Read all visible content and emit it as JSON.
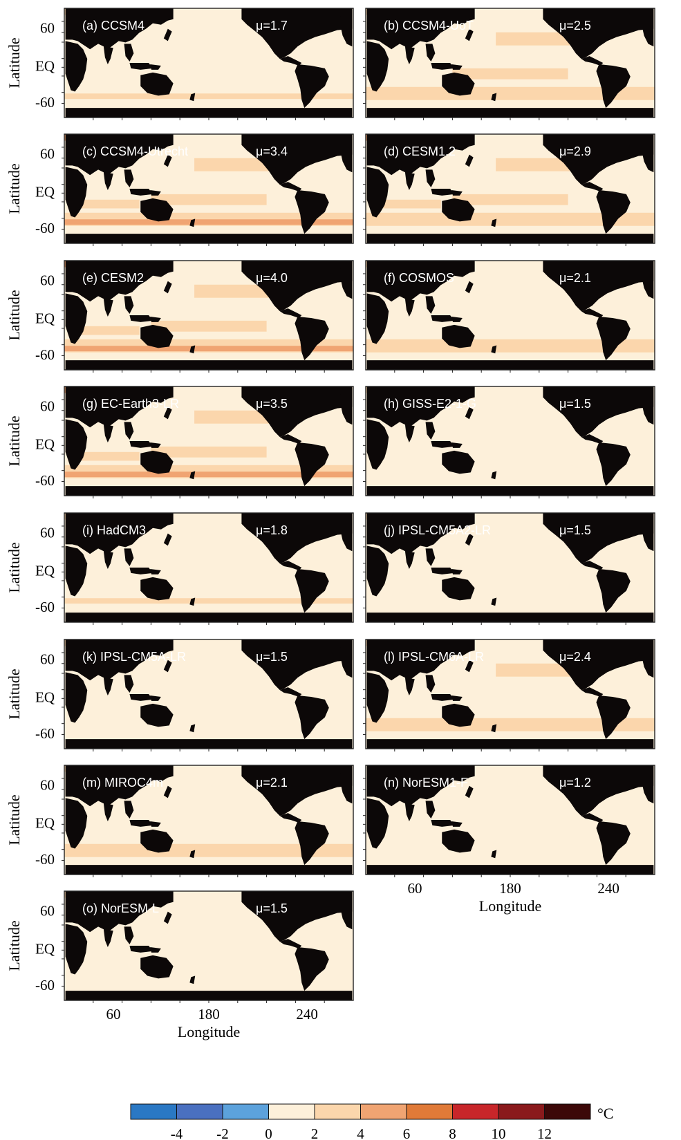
{
  "figure": {
    "ylabel": "Latitude",
    "xlabel": "Longitude",
    "unit": "°C"
  },
  "chart_data": [
    {
      "type": "heatmap",
      "panel_label": "(a) CCSM4",
      "mean_label": "μ=1.7",
      "mean": 1.7,
      "yticks": [
        "60",
        "EQ",
        "-60"
      ],
      "xticks": [],
      "xlabel": ""
    },
    {
      "type": "heatmap",
      "panel_label": "(b) CCSM4-UoT",
      "mean_label": "μ=2.5",
      "mean": 2.5,
      "yticks": [],
      "xticks": [],
      "xlabel": ""
    },
    {
      "type": "heatmap",
      "panel_label": "(c) CCSM4-Utrecht",
      "mean_label": "μ=3.4",
      "mean": 3.4,
      "yticks": [
        "60",
        "EQ",
        "-60"
      ],
      "xticks": [],
      "xlabel": ""
    },
    {
      "type": "heatmap",
      "panel_label": "(d) CESM1.2",
      "mean_label": "μ=2.9",
      "mean": 2.9,
      "yticks": [],
      "xticks": [],
      "xlabel": ""
    },
    {
      "type": "heatmap",
      "panel_label": "(e) CESM2",
      "mean_label": "μ=4.0",
      "mean": 4.0,
      "yticks": [
        "60",
        "EQ",
        "-60"
      ],
      "xticks": [],
      "xlabel": ""
    },
    {
      "type": "heatmap",
      "panel_label": "(f) COSMOS",
      "mean_label": "μ=2.1",
      "mean": 2.1,
      "yticks": [],
      "xticks": [],
      "xlabel": ""
    },
    {
      "type": "heatmap",
      "panel_label": "(g) EC-Earth3-LR",
      "mean_label": "μ=3.5",
      "mean": 3.5,
      "yticks": [
        "60",
        "EQ",
        "-60"
      ],
      "xticks": [],
      "xlabel": ""
    },
    {
      "type": "heatmap",
      "panel_label": "(h) GISS-E2-1-G",
      "mean_label": "μ=1.5",
      "mean": 1.5,
      "yticks": [],
      "xticks": [],
      "xlabel": ""
    },
    {
      "type": "heatmap",
      "panel_label": "(i) HadCM3",
      "mean_label": "μ=1.8",
      "mean": 1.8,
      "yticks": [
        "60",
        "EQ",
        "-60"
      ],
      "xticks": [],
      "xlabel": ""
    },
    {
      "type": "heatmap",
      "panel_label": "(j) IPSL-CM5A2-LR",
      "mean_label": "μ=1.5",
      "mean": 1.5,
      "yticks": [],
      "xticks": [],
      "xlabel": ""
    },
    {
      "type": "heatmap",
      "panel_label": "(k) IPSL-CM5A-LR",
      "mean_label": "μ=1.5",
      "mean": 1.5,
      "yticks": [
        "60",
        "EQ",
        "-60"
      ],
      "xticks": [],
      "xlabel": ""
    },
    {
      "type": "heatmap",
      "panel_label": "(l) IPSL-CM6A-LR",
      "mean_label": "μ=2.4",
      "mean": 2.4,
      "yticks": [],
      "xticks": [],
      "xlabel": ""
    },
    {
      "type": "heatmap",
      "panel_label": "(m) MIROC4m",
      "mean_label": "μ=2.1",
      "mean": 2.1,
      "yticks": [
        "60",
        "EQ",
        "-60"
      ],
      "xticks": [],
      "xlabel": ""
    },
    {
      "type": "heatmap",
      "panel_label": "(n) NorESM1-F",
      "mean_label": "μ=1.2",
      "mean": 1.2,
      "yticks": [],
      "xticks": [
        "60",
        "180",
        "240"
      ],
      "xlabel": "Longitude"
    },
    {
      "type": "heatmap",
      "panel_label": "(o) NorESM-L",
      "mean_label": "μ=1.5",
      "mean": 1.5,
      "yticks": [
        "60",
        "EQ",
        "-60"
      ],
      "xticks": [
        "60",
        "180",
        "240"
      ],
      "xlabel": "Longitude"
    }
  ],
  "colorbar": {
    "tick_labels": [
      "-4",
      "-2",
      "0",
      "2",
      "4",
      "6",
      "8",
      "10",
      "12"
    ],
    "colors": [
      "#2a78c4",
      "#4a70c0",
      "#5ca2dc",
      "#fdf0da",
      "#fbd6ac",
      "#f0a472",
      "#e07a38",
      "#c8262a",
      "#8a1a1c",
      "#3c0808"
    ],
    "bins": [
      [
        -6,
        -4
      ],
      [
        -4,
        -2
      ],
      [
        -2,
        0
      ],
      [
        0,
        2
      ],
      [
        2,
        4
      ],
      [
        4,
        6
      ],
      [
        6,
        8
      ],
      [
        8,
        10
      ],
      [
        10,
        12
      ],
      [
        12,
        14
      ]
    ],
    "unit": "°C"
  },
  "colors": {
    "land": "#0c0808",
    "frame": "#222222"
  }
}
